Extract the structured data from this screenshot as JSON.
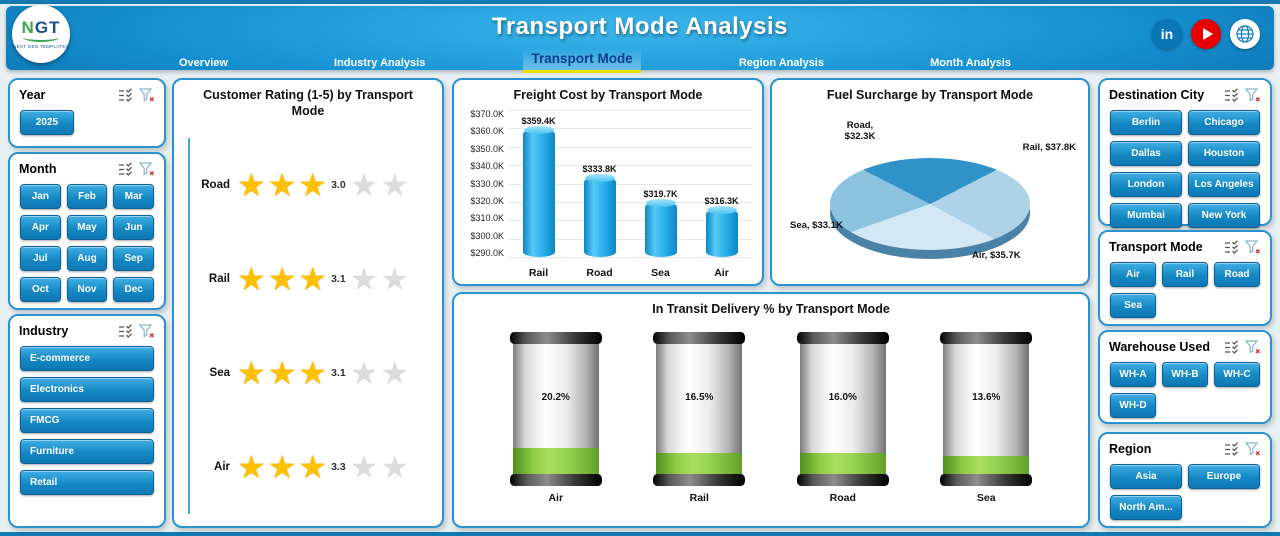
{
  "header": {
    "title": "Transport Mode Analysis",
    "logo": {
      "text": "NGT",
      "subtext": "NEXT GEN TEMPLATES"
    },
    "social": {
      "linkedin": "in"
    },
    "tabs": [
      {
        "label": "Overview",
        "active": false
      },
      {
        "label": "Industry Analysis",
        "active": false
      },
      {
        "label": "Transport Mode",
        "active": true
      },
      {
        "label": "Region Analysis",
        "active": false
      },
      {
        "label": "Month Analysis",
        "active": false
      }
    ]
  },
  "filters": {
    "year": {
      "title": "Year",
      "items": [
        "2025"
      ]
    },
    "month": {
      "title": "Month",
      "items": [
        "Jan",
        "Feb",
        "Mar",
        "Apr",
        "May",
        "Jun",
        "Jul",
        "Aug",
        "Sep",
        "Oct",
        "Nov",
        "Dec"
      ]
    },
    "industry": {
      "title": "Industry",
      "items": [
        "E-commerce",
        "Electronics",
        "FMCG",
        "Furniture",
        "Retail"
      ]
    },
    "destination_city": {
      "title": "Destination City",
      "items": [
        "Berlin",
        "Chicago",
        "Dallas",
        "Houston",
        "London",
        "Los Angeles",
        "Mumbai",
        "New York"
      ]
    },
    "transport_mode": {
      "title": "Transport Mode",
      "items": [
        "Air",
        "Rail",
        "Road",
        "Sea"
      ]
    },
    "warehouse": {
      "title": "Warehouse Used",
      "items": [
        "WH-A",
        "WH-B",
        "WH-C",
        "WH-D"
      ]
    },
    "region": {
      "title": "Region",
      "items": [
        "Asia",
        "Europe",
        "North Am..."
      ]
    }
  },
  "chart_data": [
    {
      "type": "rating",
      "title": "Customer Rating (1-5) by Transport Mode",
      "categories": [
        "Road",
        "Rail",
        "Sea",
        "Air"
      ],
      "values": [
        3.0,
        3.1,
        3.1,
        3.3
      ],
      "scale_max": 5
    },
    {
      "type": "bar",
      "title": "Freight Cost by Transport Mode",
      "categories": [
        "Rail",
        "Road",
        "Sea",
        "Air"
      ],
      "values": [
        359.4,
        333.8,
        319.7,
        316.3
      ],
      "labels": [
        "$359.4K",
        "$333.8K",
        "$319.7K",
        "$316.3K"
      ],
      "ylim": [
        290,
        370
      ],
      "yticks": [
        "$370.0K",
        "$360.0K",
        "$350.0K",
        "$340.0K",
        "$330.0K",
        "$320.0K",
        "$310.0K",
        "$300.0K",
        "$290.0K"
      ]
    },
    {
      "type": "pie",
      "title": "Fuel Surcharge by Transport Mode",
      "categories": [
        "Road",
        "Rail",
        "Air",
        "Sea"
      ],
      "values": [
        32.3,
        37.8,
        35.7,
        33.1
      ],
      "labels": [
        "Road, $32.3K",
        "Rail, $37.8K",
        "Air, $35.7K",
        "Sea, $33.1K"
      ],
      "colors": [
        "#2f93c9",
        "#aed3e9",
        "#d3e8f4",
        "#8cc3e0"
      ]
    },
    {
      "type": "gauge",
      "title": "In Transit Delivery % by Transport Mode",
      "categories": [
        "Air",
        "Rail",
        "Road",
        "Sea"
      ],
      "values": [
        20.2,
        16.5,
        16.0,
        13.6
      ],
      "labels": [
        "20.2%",
        "16.5%",
        "16.0%",
        "13.6%"
      ]
    }
  ],
  "colors": {
    "accent": "#2a93cf",
    "header_blue": "#1793d4",
    "star_gold": "#FFC000",
    "gauge_green": "#92D050",
    "active_tab_underline": "#e8e400"
  }
}
